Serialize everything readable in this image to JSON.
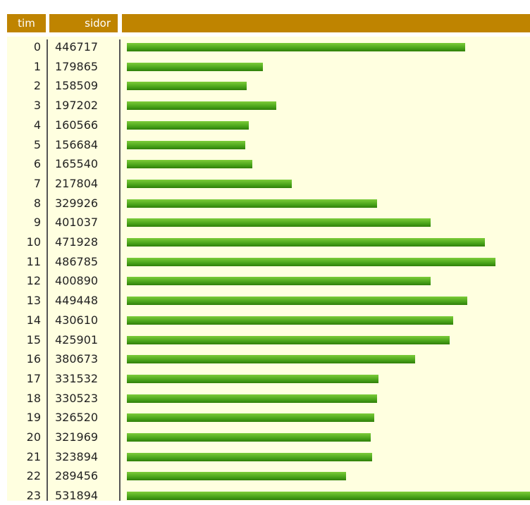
{
  "chart_data": {
    "type": "bar",
    "orientation": "horizontal",
    "columns": [
      "tim",
      "sidor"
    ],
    "categories": [
      "0",
      "1",
      "2",
      "3",
      "4",
      "5",
      "6",
      "7",
      "8",
      "9",
      "10",
      "11",
      "12",
      "13",
      "14",
      "15",
      "16",
      "17",
      "18",
      "19",
      "20",
      "21",
      "22",
      "23"
    ],
    "values": [
      446717,
      179865,
      158509,
      197202,
      160566,
      156684,
      165540,
      217804,
      329926,
      401037,
      471928,
      486785,
      400890,
      449448,
      430610,
      425901,
      380673,
      331532,
      330523,
      326520,
      321969,
      323894,
      289456,
      531894
    ],
    "color": "#4aa41a"
  }
}
